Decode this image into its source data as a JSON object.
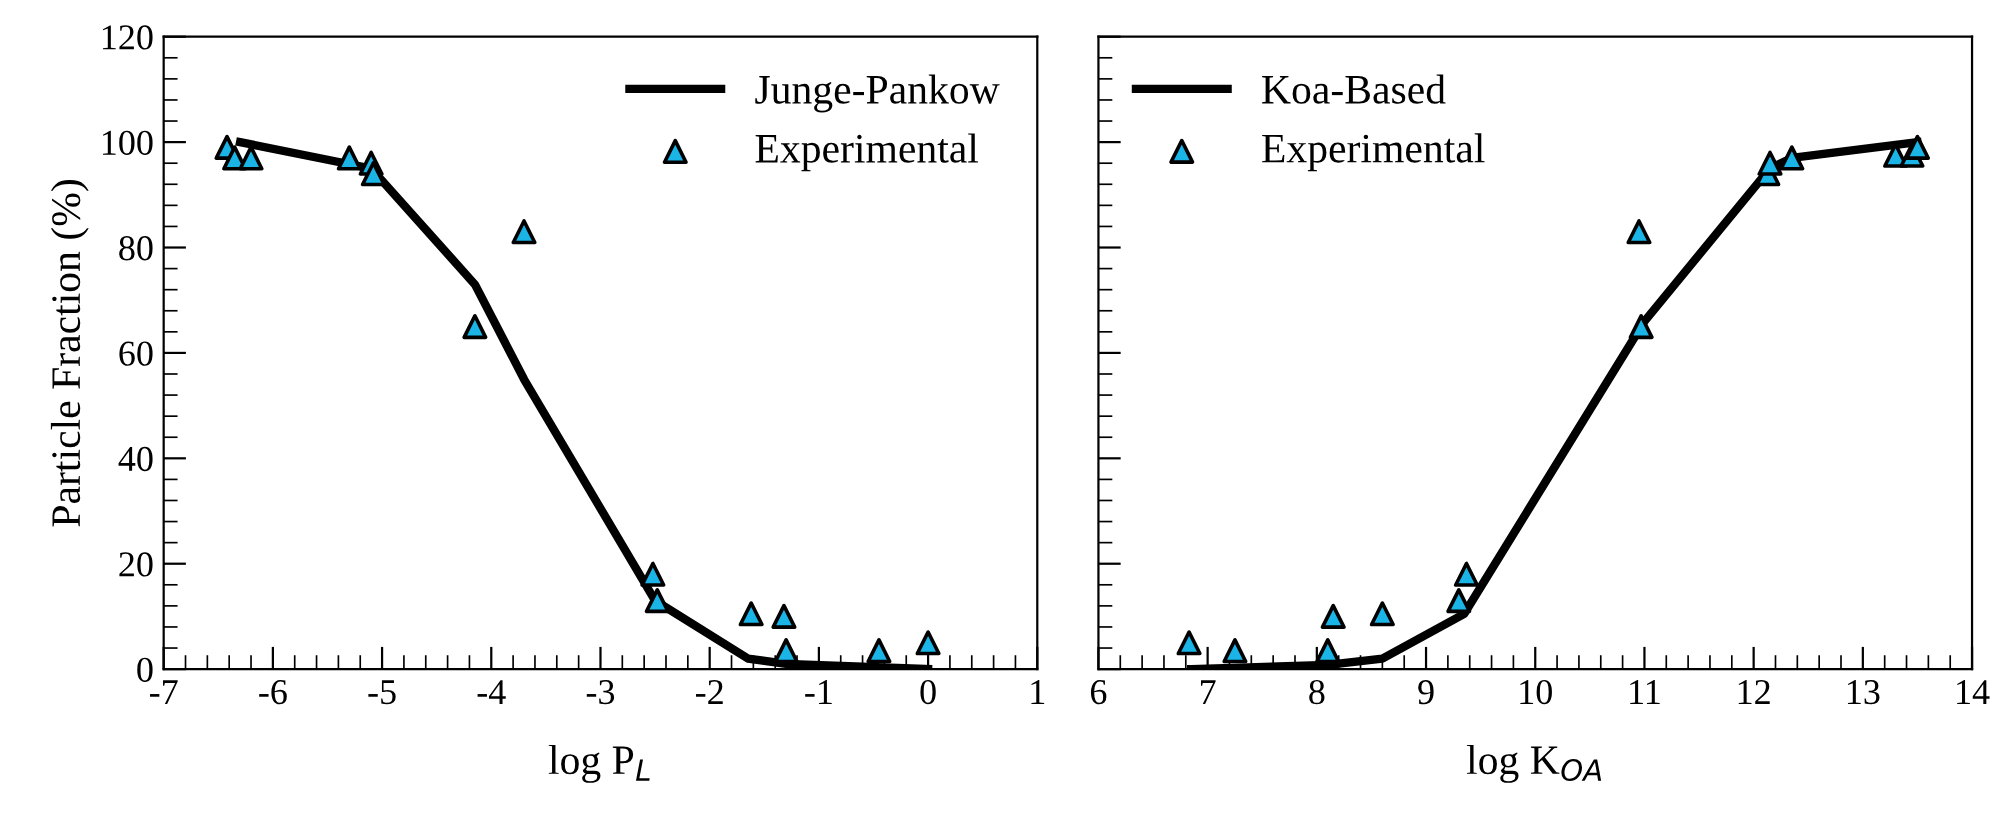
{
  "chart_data": [
    {
      "type": "line",
      "xlabel": "log P$_{L}$",
      "ylabel": "Particle Fraction (%)",
      "xlim": [
        -7,
        1
      ],
      "xticks": [
        -7,
        -6,
        -5,
        -4,
        -3,
        -2,
        -1,
        0,
        1
      ],
      "ylim": [
        0,
        120
      ],
      "yticks": [
        0,
        20,
        40,
        60,
        80,
        100,
        120
      ],
      "legend": "top right",
      "grid": false,
      "series": [
        {
          "name": "Junge-Pankow",
          "color": "#000000",
          "marker": "none",
          "line_style": "solid",
          "x": [
            -6.3,
            -5.1,
            -4.15,
            -3.7,
            -2.5,
            -1.65,
            -1.3,
            0
          ],
          "values": [
            100,
            95,
            73,
            55,
            13,
            2,
            1,
            0
          ]
        },
        {
          "name": "Experimental",
          "type": "scatter",
          "color": "#1ab4e6",
          "marker": "triangle",
          "x": [
            -6.42,
            -6.35,
            -6.2,
            -5.3,
            -5.1,
            -5.08,
            -4.15,
            -3.7,
            -2.52,
            -2.48,
            -1.62,
            -1.32,
            -1.3,
            -0.45,
            0
          ],
          "values": [
            99,
            97,
            97,
            97,
            96,
            94,
            65,
            83,
            18,
            13,
            10.5,
            10,
            3.5,
            3.5,
            5
          ]
        }
      ]
    },
    {
      "type": "line",
      "xlabel": "log K$_{OA}$",
      "xlim": [
        6,
        14
      ],
      "xticks": [
        6,
        7,
        8,
        9,
        10,
        11,
        12,
        13,
        14
      ],
      "ylim": [
        0,
        120
      ],
      "yticks": [
        {
          "value": 0,
          "label": null
        },
        {
          "value": 20,
          "label": null
        },
        {
          "value": 40,
          "label": null
        },
        {
          "value": 60,
          "label": null
        },
        {
          "value": 80,
          "label": null
        },
        {
          "value": 100,
          "label": null
        },
        {
          "value": 120,
          "label": null
        }
      ],
      "tick_labels": "x",
      "legend": "top left",
      "grid": false,
      "series": [
        {
          "name": "Koa-Based",
          "color": "#000000",
          "marker": "none",
          "line_style": "solid",
          "x": [
            6.85,
            8.1,
            8.6,
            9.35,
            11,
            12.15,
            12.35,
            13.5
          ],
          "values": [
            0,
            0.8,
            2,
            10.5,
            66,
            95,
            97,
            100
          ]
        },
        {
          "name": "Experimental",
          "type": "scatter",
          "color": "#1ab4e6",
          "marker": "triangle",
          "x": [
            6.83,
            7.25,
            8.1,
            8.15,
            8.6,
            9.3,
            9.37,
            10.95,
            10.97,
            12.13,
            12.15,
            12.35,
            13.3,
            13.45,
            13.5
          ],
          "values": [
            5,
            3.5,
            3.5,
            10,
            10.5,
            13,
            18,
            83,
            65,
            94,
            96,
            97,
            97.5,
            97.5,
            99
          ]
        }
      ]
    }
  ]
}
